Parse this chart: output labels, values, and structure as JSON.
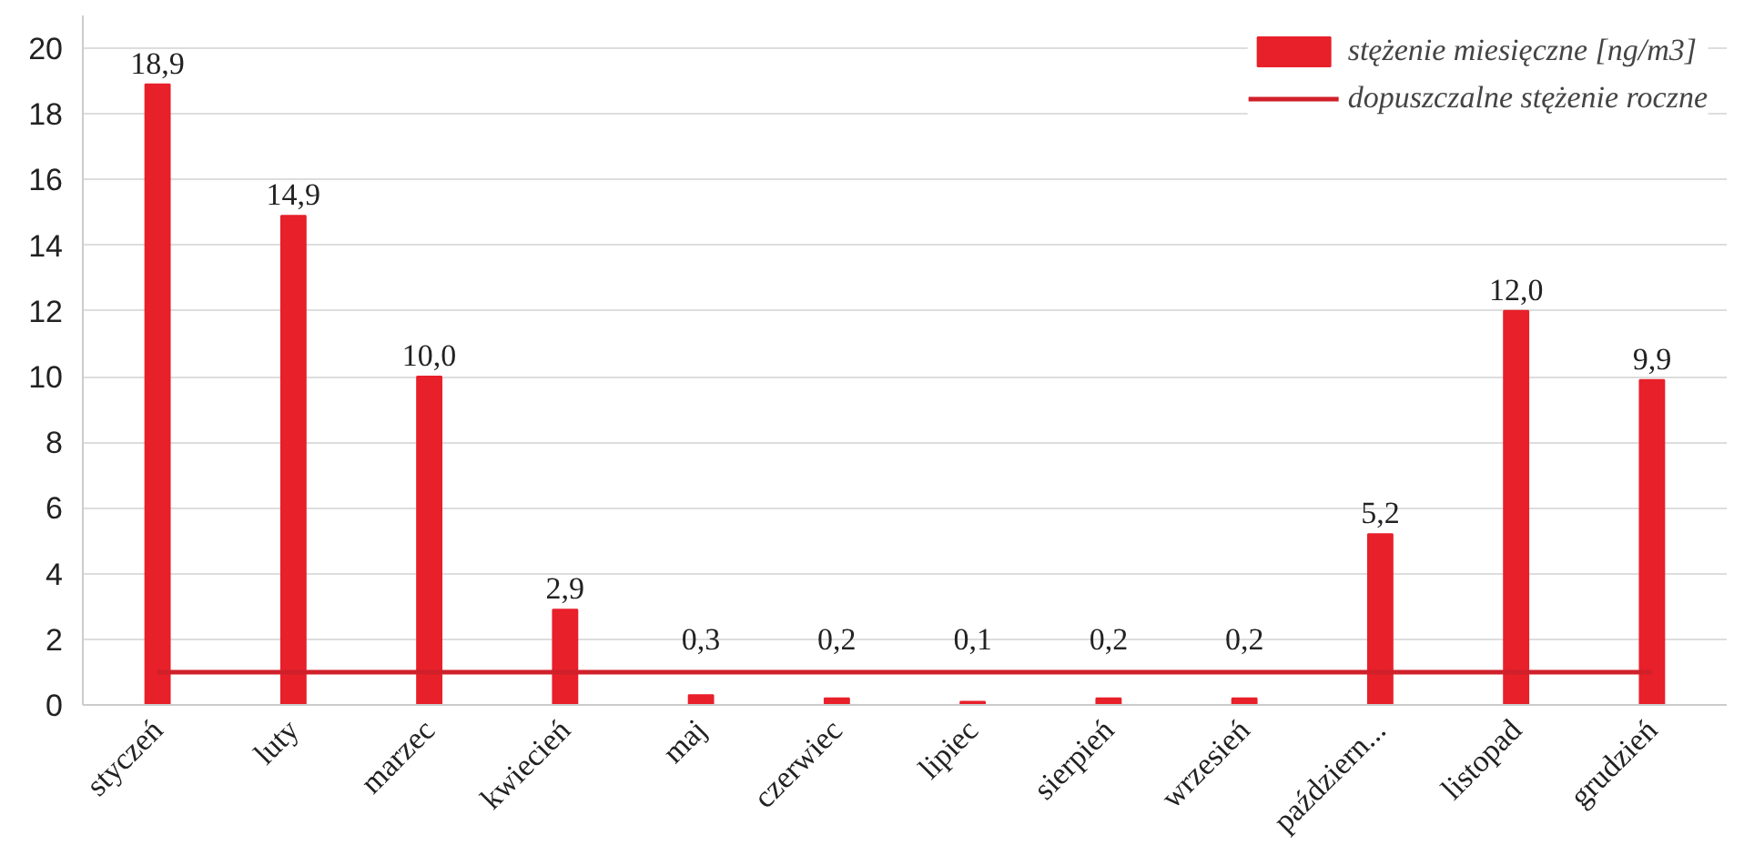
{
  "chart_data": {
    "type": "bar",
    "categories": [
      "styczeń",
      "luty",
      "marzec",
      "kwiecień",
      "maj",
      "czerwiec",
      "lipiec",
      "sierpień",
      "wrzesień",
      "październ...",
      "listopad",
      "grudzień"
    ],
    "series": [
      {
        "name": "stężenie miesięczne [ng/m3]",
        "color": "#e8202a",
        "values": [
          18.9,
          14.9,
          10.0,
          2.9,
          0.3,
          0.2,
          0.1,
          0.2,
          0.2,
          5.2,
          12.0,
          9.9
        ],
        "value_labels": [
          "18,9",
          "14,9",
          "10,0",
          "2,9",
          "0,3",
          "0,2",
          "0,1",
          "0,2",
          "0,2",
          "5,2",
          "12,0",
          "9,9"
        ]
      },
      {
        "name": "dopuszczalne stężenie roczne",
        "type": "line",
        "color": "#d0202a",
        "values": [
          1,
          1,
          1,
          1,
          1,
          1,
          1,
          1,
          1,
          1,
          1,
          1
        ]
      }
    ],
    "ylim": [
      0,
      21
    ],
    "yticks": [
      0,
      2,
      4,
      6,
      8,
      10,
      12,
      14,
      16,
      18,
      20
    ],
    "grid": "y",
    "legend": "top right"
  }
}
